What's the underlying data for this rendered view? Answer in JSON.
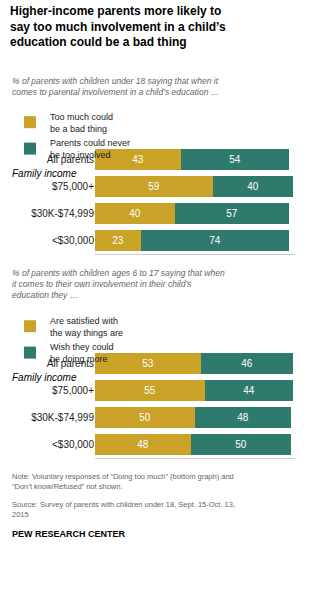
{
  "chart_data": [
    {
      "type": "bar",
      "orientation": "horizontal",
      "stacked": true,
      "data_labels": true,
      "tick_labels": "y",
      "grid": false,
      "legend": "top",
      "title": "Higher-income parents more likely to\nsay too much involvement in a child’s\neducation could be a bad thing",
      "subtitle": "% of parents with children under 18 saying that when it\ncomes to parental involvement in a child’s education …",
      "annotations": [
        "Family income"
      ],
      "categories": [
        "All parents",
        "$75,000+",
        "$30K-$74,999",
        "<$30,000"
      ],
      "series": [
        {
          "name": "Too much could\nbe a bad thing",
          "color": "#C9A227",
          "values": [
            43,
            59,
            40,
            23
          ]
        },
        {
          "name": "Parents could never\nbe too involved",
          "color": "#2E7B6E",
          "values": [
            54,
            40,
            57,
            74
          ]
        }
      ],
      "xlim": [
        0,
        100
      ]
    },
    {
      "type": "bar",
      "orientation": "horizontal",
      "stacked": true,
      "data_labels": true,
      "tick_labels": "y",
      "grid": false,
      "legend": "top",
      "subtitle": "% of parents with children ages 6 to 17 saying that when\nit comes to their own involvement in their child’s\neducation they …",
      "annotations": [
        "Family income"
      ],
      "categories": [
        "All parents",
        "$75,000+",
        "$30K-$74,999",
        "<$30,000"
      ],
      "series": [
        {
          "name": "Are satisfied with\nthe way things are",
          "color": "#C9A227",
          "values": [
            53,
            55,
            50,
            48
          ]
        },
        {
          "name": "Wish they could\nbe doing more",
          "color": "#2E7B6E",
          "values": [
            46,
            44,
            48,
            50
          ]
        }
      ],
      "xlim": [
        0,
        100
      ],
      "note": "Note: Voluntary responses of “Doing too much” (bottom graph) and\n“Don’t know/Refused” not shown.",
      "source": "Source: Survey of parents with children under 18, Sept. 15-Oct. 13,\n2015",
      "credit": "PEW RESEARCH CENTER"
    }
  ]
}
